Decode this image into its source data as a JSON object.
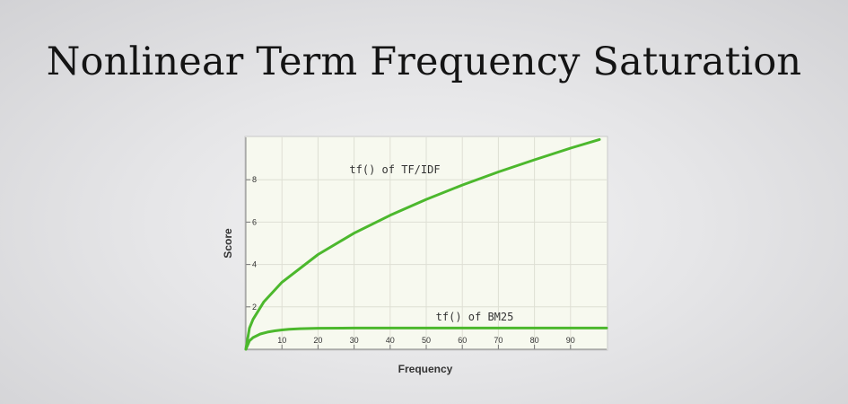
{
  "slide": {
    "title": "Nonlinear Term Frequency Saturation"
  },
  "chart_data": {
    "type": "line",
    "title": "",
    "xlabel": "Frequency",
    "ylabel": "Score",
    "xlim": [
      0,
      100
    ],
    "ylim": [
      0,
      10
    ],
    "xticks": [
      10,
      20,
      30,
      40,
      50,
      60,
      70,
      80,
      90
    ],
    "yticks": [
      2,
      4,
      6,
      8
    ],
    "grid": true,
    "legend": "none",
    "series": [
      {
        "name": "tf() of TF/IDF",
        "color": "#4cb82d",
        "x": [
          0,
          1,
          2,
          5,
          10,
          20,
          30,
          40,
          50,
          60,
          70,
          80,
          90,
          98
        ],
        "values": [
          0,
          1.0,
          1.41,
          2.24,
          3.16,
          4.47,
          5.48,
          6.32,
          7.07,
          7.75,
          8.37,
          8.94,
          9.49,
          9.9
        ]
      },
      {
        "name": "tf() of BM25",
        "color": "#4cb82d",
        "x": [
          0,
          1,
          2,
          4,
          6,
          8,
          10,
          12,
          15,
          20,
          30,
          40,
          50,
          60,
          70,
          80,
          90,
          100
        ],
        "values": [
          0,
          0.4,
          0.55,
          0.72,
          0.81,
          0.87,
          0.91,
          0.94,
          0.97,
          0.99,
          1.0,
          1.0,
          1.0,
          1.0,
          1.0,
          1.0,
          1.0,
          1.0
        ]
      }
    ]
  }
}
